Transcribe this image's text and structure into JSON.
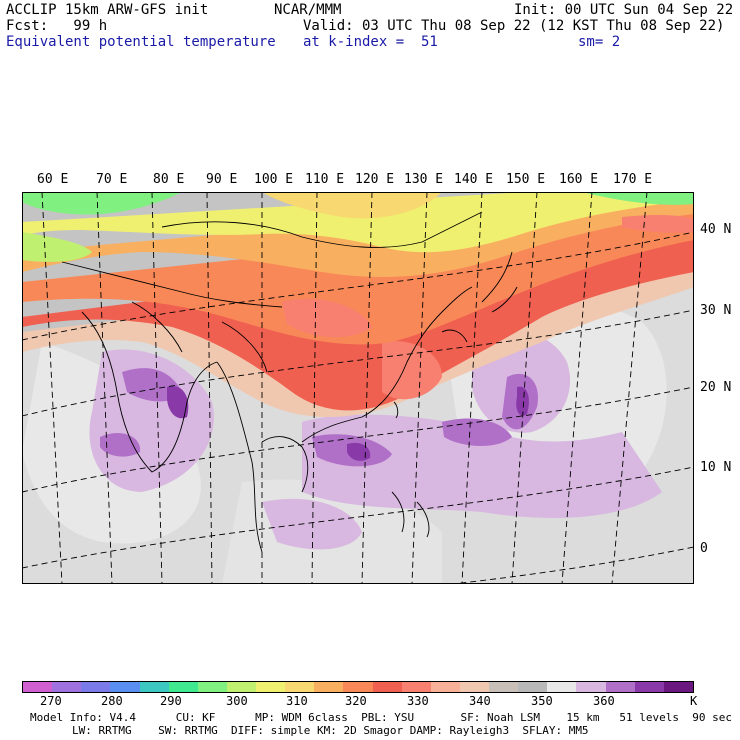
{
  "header": {
    "left_line1": "ACCLIP 15km ARW-GFS init",
    "left_line2": "Fcst:   99 h",
    "variable": "Equivalent potential temperature",
    "center_org": "NCAR/MMM",
    "init_line": "Init: 00 UTC Sun 04 Sep 22",
    "valid_line": "Valid: 03 UTC Thu 08 Sep 22 (12 KST Thu 08 Sep 22)",
    "level_line": "at k-index =  51",
    "smooth_line": "sm= 2"
  },
  "longitude_labels": [
    "60 E",
    "70 E",
    "80 E",
    "90 E",
    "100 E",
    "110 E",
    "120 E",
    "130 E",
    "140 E",
    "150 E",
    "160 E",
    "170 E"
  ],
  "latitude_labels": [
    "40 N",
    "30 N",
    "20 N",
    "10 N",
    "0"
  ],
  "colorbar": {
    "colors": [
      "#d05fd0",
      "#a072e0",
      "#7a7ae8",
      "#5a8ef0",
      "#3cc8c0",
      "#40e890",
      "#80f080",
      "#c0f070",
      "#f0f070",
      "#f8d870",
      "#f8b060",
      "#f88858",
      "#f06050",
      "#f88070",
      "#f8b098",
      "#f0c8b0",
      "#c8c0b8",
      "#b8b8b8",
      "#e8e8e8",
      "#d8b8e0",
      "#b070c8",
      "#8a3aa8",
      "#6a1880"
    ],
    "labels": [
      "270",
      "280",
      "290",
      "300",
      "310",
      "320",
      "330",
      "340",
      "350",
      "360",
      "K"
    ]
  },
  "model_info": {
    "line1": "Model Info: V4.4      CU: KF      MP: WDM 6class  PBL: YSU       SF: Noah LSM    15 km   51 levels  90 sec",
    "line2": "LW: RRTMG    SW: RRTMG  DIFF: simple KM: 2D Smagor DAMP: Rayleigh3  SFLAY: MM5"
  }
}
